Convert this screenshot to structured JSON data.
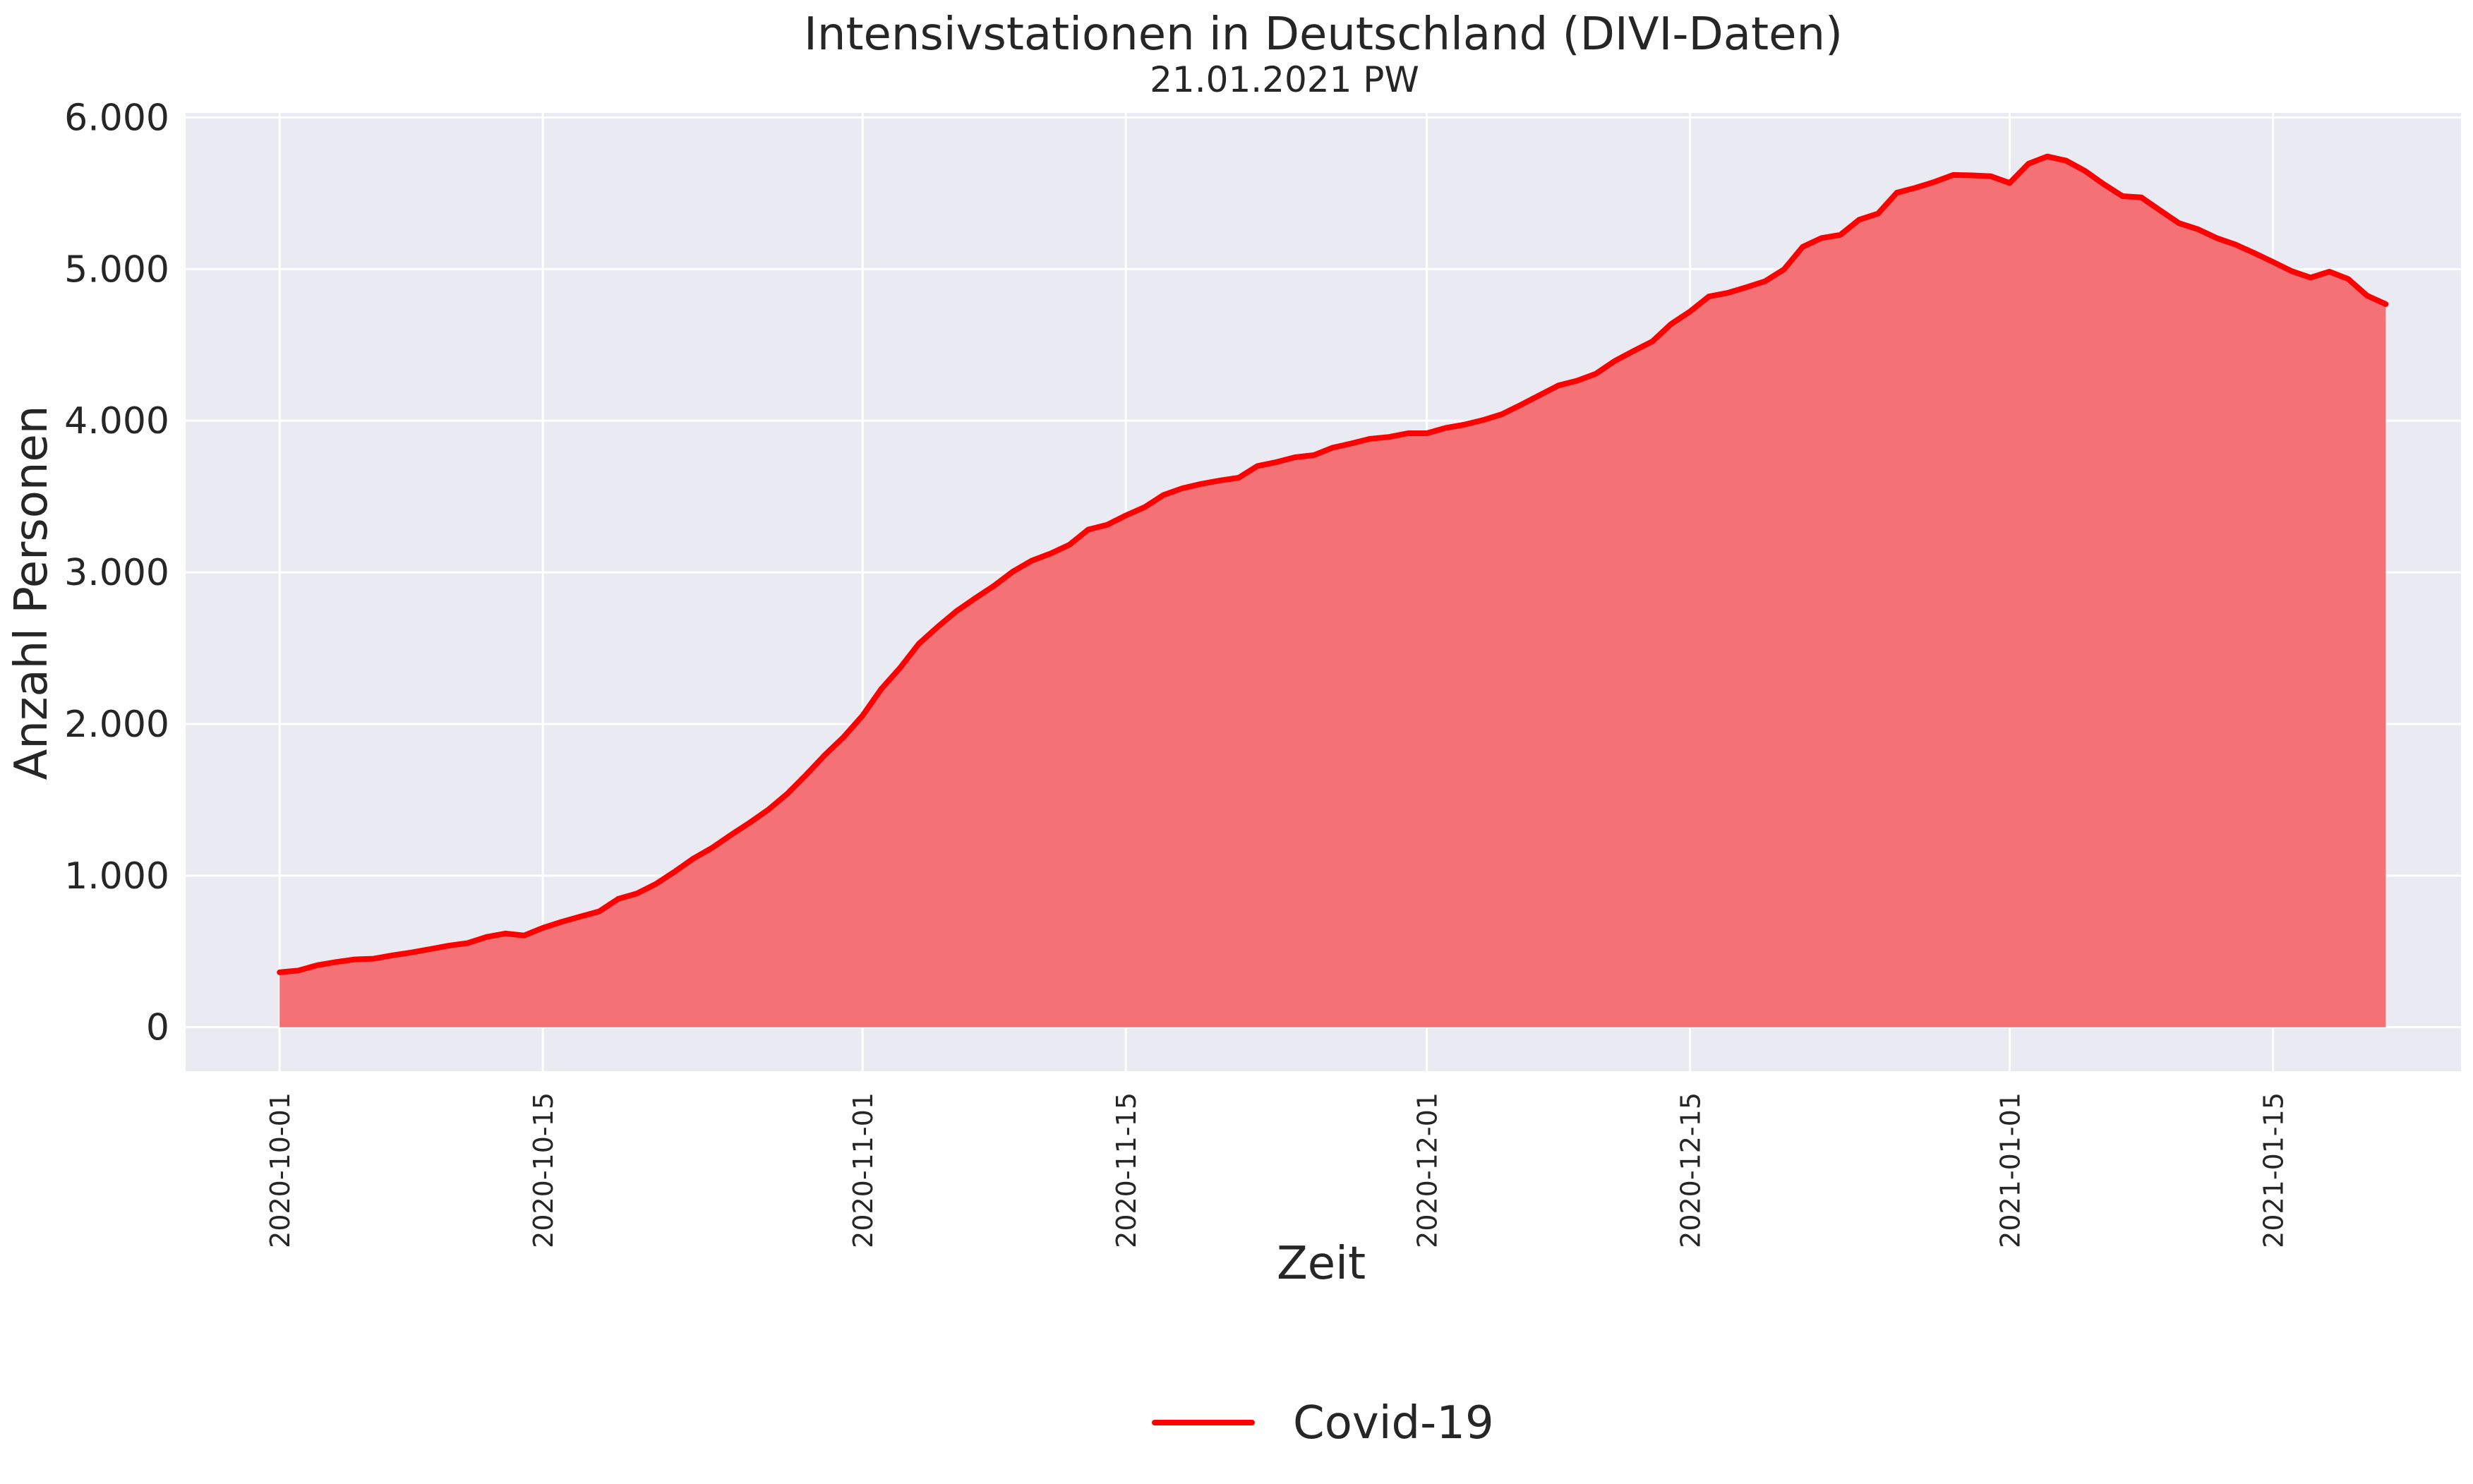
{
  "chart_data": {
    "type": "area",
    "title": "Intensivstationen in Deutschland (DIVI-Daten)",
    "subtitle": "21.01.2021 PW",
    "xlabel": "Zeit",
    "ylabel": "Anzahl Personen",
    "ylim": [
      -290,
      6030
    ],
    "yticks": [
      0,
      1000,
      2000,
      3000,
      4000,
      5000,
      6000
    ],
    "ytick_labels": [
      "0",
      "1.000",
      "2.000",
      "3.000",
      "4.000",
      "5.000",
      "6.000"
    ],
    "xlim": [
      "2020-09-26",
      "2021-01-25"
    ],
    "xticks": [
      "2020-10-01",
      "2020-10-15",
      "2020-11-01",
      "2020-11-15",
      "2020-12-01",
      "2020-12-15",
      "2021-01-01",
      "2021-01-15"
    ],
    "grid": true,
    "legend_position": "bottom-center",
    "colors": {
      "line": "#ff0000",
      "fill": "#f47275",
      "plot_background": "#eaeaf2",
      "grid": "#ffffff"
    },
    "series": [
      {
        "name": "Covid-19",
        "x": [
          "2020-10-01",
          "2020-10-02",
          "2020-10-03",
          "2020-10-04",
          "2020-10-05",
          "2020-10-06",
          "2020-10-07",
          "2020-10-08",
          "2020-10-09",
          "2020-10-10",
          "2020-10-11",
          "2020-10-12",
          "2020-10-13",
          "2020-10-14",
          "2020-10-15",
          "2020-10-16",
          "2020-10-17",
          "2020-10-18",
          "2020-10-19",
          "2020-10-20",
          "2020-10-21",
          "2020-10-22",
          "2020-10-23",
          "2020-10-24",
          "2020-10-25",
          "2020-10-26",
          "2020-10-27",
          "2020-10-28",
          "2020-10-29",
          "2020-10-30",
          "2020-10-31",
          "2020-11-01",
          "2020-11-02",
          "2020-11-03",
          "2020-11-04",
          "2020-11-05",
          "2020-11-06",
          "2020-11-07",
          "2020-11-08",
          "2020-11-09",
          "2020-11-10",
          "2020-11-11",
          "2020-11-12",
          "2020-11-13",
          "2020-11-14",
          "2020-11-15",
          "2020-11-16",
          "2020-11-17",
          "2020-11-18",
          "2020-11-19",
          "2020-11-20",
          "2020-11-21",
          "2020-11-22",
          "2020-11-23",
          "2020-11-24",
          "2020-11-25",
          "2020-11-26",
          "2020-11-27",
          "2020-11-28",
          "2020-11-29",
          "2020-11-30",
          "2020-12-01",
          "2020-12-02",
          "2020-12-03",
          "2020-12-04",
          "2020-12-05",
          "2020-12-06",
          "2020-12-07",
          "2020-12-08",
          "2020-12-09",
          "2020-12-10",
          "2020-12-11",
          "2020-12-12",
          "2020-12-13",
          "2020-12-14",
          "2020-12-15",
          "2020-12-16",
          "2020-12-17",
          "2020-12-18",
          "2020-12-19",
          "2020-12-20",
          "2020-12-21",
          "2020-12-22",
          "2020-12-23",
          "2020-12-24",
          "2020-12-25",
          "2020-12-26",
          "2020-12-27",
          "2020-12-28",
          "2020-12-29",
          "2020-12-30",
          "2020-12-31",
          "2021-01-01",
          "2021-01-02",
          "2021-01-03",
          "2021-01-04",
          "2021-01-05",
          "2021-01-06",
          "2021-01-07",
          "2021-01-08",
          "2021-01-09",
          "2021-01-10",
          "2021-01-11",
          "2021-01-12",
          "2021-01-13",
          "2021-01-14",
          "2021-01-15",
          "2021-01-16",
          "2021-01-17",
          "2021-01-18",
          "2021-01-19",
          "2021-01-20",
          "2021-01-21"
        ],
        "values": [
          362,
          374,
          409,
          430,
          447,
          452,
          474,
          493,
          515,
          538,
          555,
          595,
          618,
          605,
          655,
          695,
          730,
          764,
          846,
          882,
          944,
          1025,
          1112,
          1183,
          1268,
          1349,
          1436,
          1540,
          1665,
          1796,
          1915,
          2055,
          2232,
          2371,
          2530,
          2641,
          2745,
          2830,
          2912,
          3006,
          3077,
          3124,
          3182,
          3282,
          3313,
          3375,
          3430,
          3510,
          3554,
          3583,
          3606,
          3624,
          3701,
          3727,
          3759,
          3773,
          3822,
          3850,
          3881,
          3893,
          3917,
          3917,
          3952,
          3974,
          4004,
          4043,
          4104,
          4168,
          4232,
          4264,
          4310,
          4394,
          4460,
          4523,
          4638,
          4720,
          4819,
          4843,
          4880,
          4920,
          4998,
          5147,
          5205,
          5226,
          5326,
          5366,
          5504,
          5536,
          5575,
          5621,
          5618,
          5612,
          5568,
          5695,
          5743,
          5715,
          5648,
          5560,
          5481,
          5473,
          5387,
          5303,
          5263,
          5205,
          5162,
          5106,
          5047,
          4986,
          4944,
          4983,
          4935,
          4825,
          4769
        ]
      }
    ]
  }
}
